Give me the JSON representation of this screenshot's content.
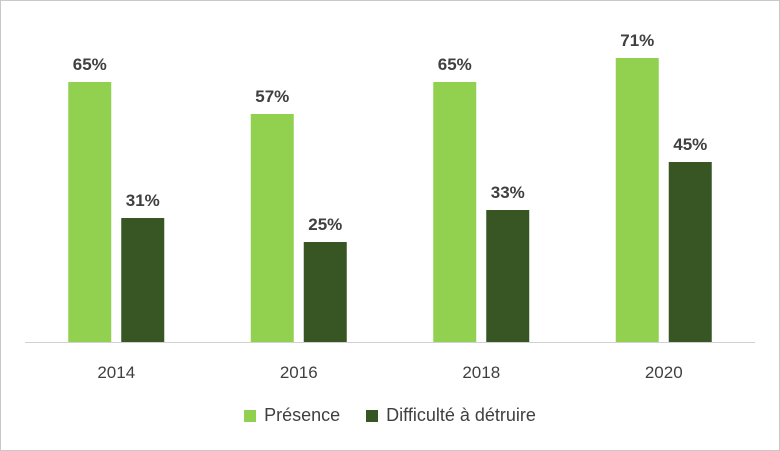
{
  "chart_data": {
    "type": "bar",
    "title": "",
    "xlabel": "",
    "ylabel": "",
    "categories": [
      "2014",
      "2016",
      "2018",
      "2020"
    ],
    "series": [
      {
        "name": "Présence",
        "values": [
          65,
          57,
          65,
          71
        ],
        "labels": [
          "65%",
          "57%",
          "65%",
          "71%"
        ],
        "color": "#92d050"
      },
      {
        "name": "Difficulté à détruire",
        "values": [
          31,
          25,
          33,
          45
        ],
        "labels": [
          "31%",
          "25%",
          "33%",
          "45%"
        ],
        "color": "#375623"
      }
    ],
    "ylim": [
      0,
      100
    ],
    "grid": false,
    "legend_position": "bottom"
  }
}
